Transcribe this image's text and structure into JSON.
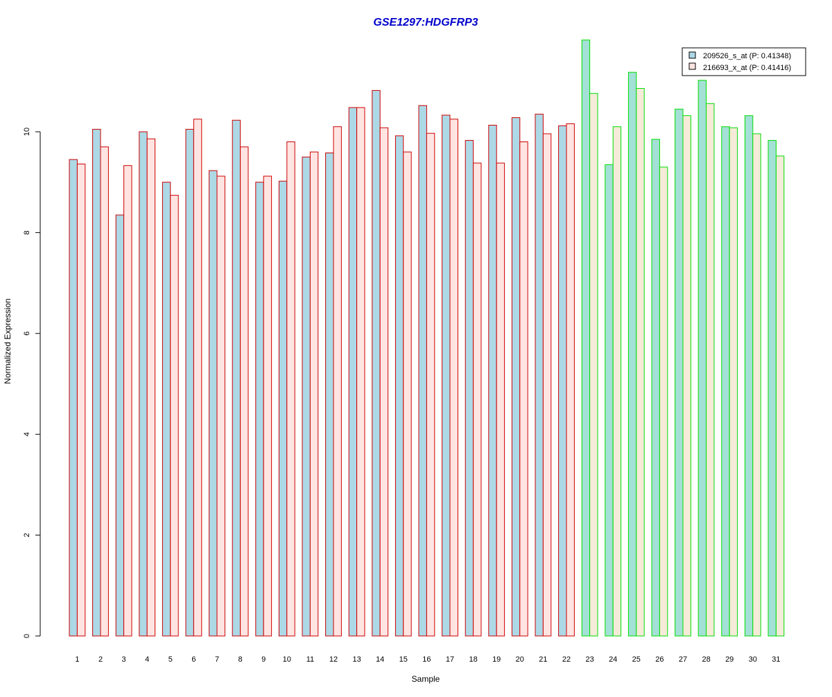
{
  "chart_data": {
    "type": "bar",
    "title": "GSE1297:HDGFRP3",
    "xlabel": "Sample",
    "ylabel": "Normalized Expression",
    "ylim": [
      0,
      12
    ],
    "yticks": [
      0,
      2,
      4,
      6,
      8,
      10
    ],
    "grid": false,
    "legend_position": "top-right",
    "categories": [
      "1",
      "2",
      "3",
      "4",
      "5",
      "6",
      "7",
      "8",
      "9",
      "10",
      "11",
      "12",
      "13",
      "14",
      "15",
      "16",
      "17",
      "18",
      "19",
      "20",
      "21",
      "22",
      "23",
      "24",
      "25",
      "26",
      "27",
      "28",
      "29",
      "30",
      "31"
    ],
    "series": [
      {
        "name": "209526_s_at (P: 0.41348)",
        "values": [
          9.45,
          10.05,
          8.35,
          10.0,
          9.0,
          10.05,
          9.23,
          10.23,
          9.0,
          9.02,
          9.5,
          9.58,
          10.48,
          10.82,
          9.92,
          10.52,
          10.33,
          9.83,
          10.13,
          10.28,
          10.35,
          10.12,
          11.82,
          9.35,
          11.18,
          9.85,
          10.45,
          11.02,
          10.1,
          10.32,
          9.83
        ]
      },
      {
        "name": "216693_x_at (P: 0.41416)",
        "values": [
          9.36,
          9.7,
          9.33,
          9.86,
          8.74,
          10.25,
          9.12,
          9.7,
          9.12,
          9.8,
          9.6,
          10.1,
          10.48,
          10.08,
          9.6,
          9.97,
          10.25,
          9.38,
          9.38,
          9.8,
          9.96,
          10.16,
          10.76,
          10.1,
          10.86,
          9.3,
          10.32,
          10.56,
          10.08,
          9.96,
          9.52
        ]
      }
    ],
    "group_split_after": 22,
    "colors": {
      "series1_fill": "#add8e6",
      "series2_fill": "#ffe4e1",
      "group1_border": "#cc0000",
      "group2_series1_fill": "#a3e0d6",
      "group2_series2_fill": "#f5ebd8",
      "group2_border": "#00dd00",
      "title": "#0000cc",
      "axis": "#000000"
    }
  }
}
